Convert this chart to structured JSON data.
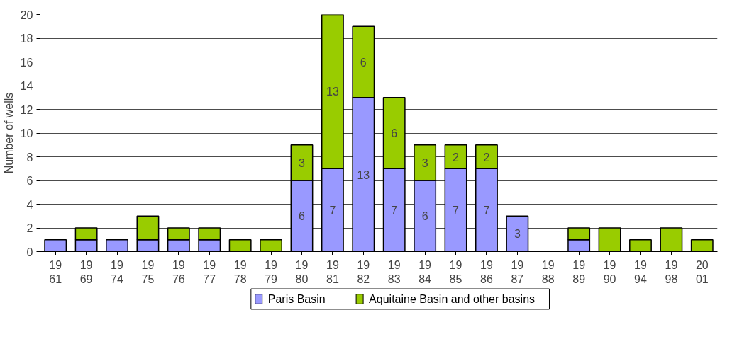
{
  "chart_data": {
    "type": "bar",
    "stacked": true,
    "ylabel": "Number of wells",
    "categories": [
      "19\n61",
      "19\n69",
      "19\n74",
      "19\n75",
      "19\n76",
      "19\n77",
      "19\n78",
      "19\n79",
      "19\n80",
      "19\n81",
      "19\n82",
      "19\n83",
      "19\n84",
      "19\n85",
      "19\n86",
      "19\n87",
      "19\n88",
      "19\n89",
      "19\n90",
      "19\n94",
      "19\n98",
      "20\n01"
    ],
    "series": [
      {
        "name": "Paris Basin",
        "color": "#9999ff",
        "values": [
          1,
          1,
          1,
          1,
          1,
          1,
          0,
          0,
          6,
          7,
          13,
          7,
          6,
          7,
          7,
          3,
          0,
          1,
          0,
          0,
          0,
          0
        ],
        "value_labels": [
          null,
          null,
          null,
          null,
          null,
          null,
          null,
          null,
          "6",
          "7",
          "13",
          "7",
          "6",
          "7",
          "7",
          "3",
          null,
          null,
          null,
          null,
          null,
          null
        ]
      },
      {
        "name": "Aquitaine Basin and other basins",
        "color": "#99cc00",
        "values": [
          0,
          1,
          0,
          2,
          1,
          1,
          1,
          1,
          3,
          13,
          6,
          6,
          3,
          2,
          2,
          0,
          0,
          1,
          2,
          1,
          2,
          1
        ],
        "value_labels": [
          null,
          null,
          null,
          null,
          null,
          null,
          null,
          null,
          "3",
          "13",
          "6",
          "6",
          "3",
          "2",
          "2",
          null,
          null,
          null,
          null,
          null,
          null,
          null
        ]
      }
    ],
    "ylim": [
      0,
      20
    ],
    "yticks": [
      0,
      2,
      4,
      6,
      8,
      10,
      12,
      14,
      16,
      18,
      20
    ],
    "grid": "y",
    "legend": "bottom"
  }
}
